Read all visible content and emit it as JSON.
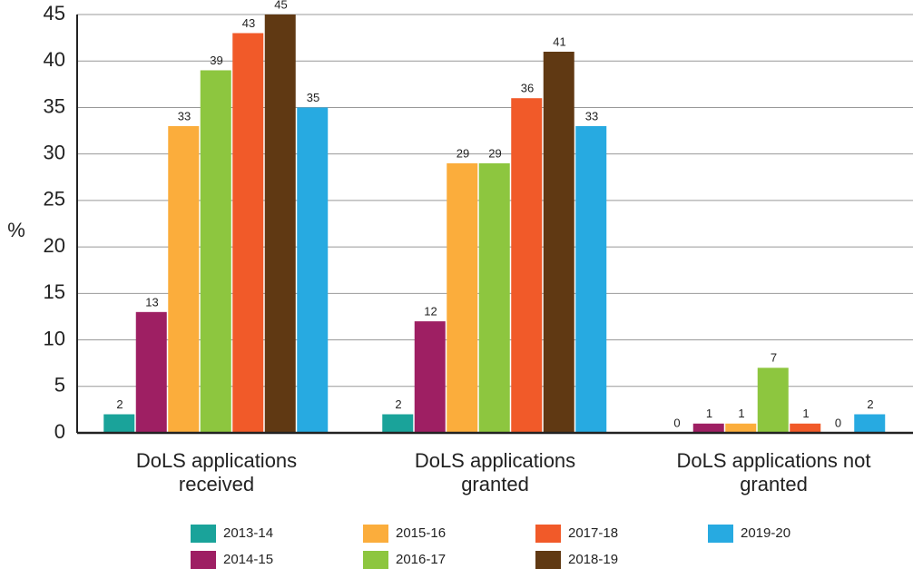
{
  "chart_data": {
    "type": "bar",
    "y_label": "%",
    "categories": [
      "DoLS applications received",
      "DoLS applications granted",
      "DoLS applications not granted"
    ],
    "series": [
      {
        "name": "2013-14",
        "color": "#1aa39a",
        "values": [
          2,
          2,
          0
        ]
      },
      {
        "name": "2014-15",
        "color": "#9e1f63",
        "values": [
          13,
          12,
          1
        ]
      },
      {
        "name": "2015-16",
        "color": "#fbad3c",
        "values": [
          33,
          29,
          1
        ]
      },
      {
        "name": "2016-17",
        "color": "#8dc63f",
        "values": [
          39,
          29,
          7
        ]
      },
      {
        "name": "2017-18",
        "color": "#f15a29",
        "values": [
          43,
          36,
          1
        ]
      },
      {
        "name": "2018-19",
        "color": "#603913",
        "values": [
          45,
          41,
          0
        ]
      },
      {
        "name": "2019-20",
        "color": "#27aae1",
        "values": [
          35,
          33,
          2
        ]
      }
    ],
    "ylim": [
      0,
      45
    ],
    "yticks": [
      0,
      5,
      10,
      15,
      20,
      25,
      30,
      35,
      40,
      45
    ],
    "grid": true
  }
}
